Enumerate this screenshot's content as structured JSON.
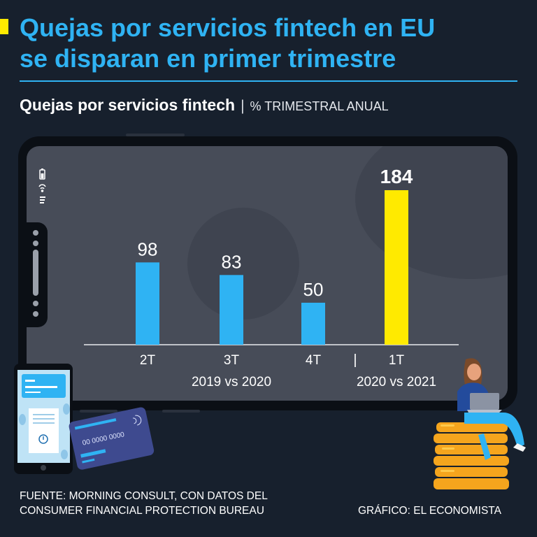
{
  "headline": {
    "line1": "Quejas por servicios fintech en EU",
    "line2": "se disparan en primer trimestre"
  },
  "subtitle": {
    "main": "Quejas por servicios fintech",
    "separator": "|",
    "unit": "% TRIMESTRAL ANUAL"
  },
  "colors": {
    "background": "#17202d",
    "accent_blue": "#2fb3f3",
    "accent_yellow": "#ffea00"
  },
  "chart_data": {
    "type": "bar",
    "title": "Quejas por servicios fintech",
    "ylabel": "% TRIMESTRAL ANUAL",
    "categories": [
      "2T",
      "3T",
      "4T",
      "1T"
    ],
    "values": [
      98,
      83,
      50,
      184
    ],
    "highlight_index": 3,
    "ylim": [
      0,
      184
    ],
    "groups": [
      {
        "label": "2019 vs 2020",
        "categories": [
          "2T",
          "3T",
          "4T"
        ]
      },
      {
        "label": "2020 vs 2021",
        "categories": [
          "1T"
        ]
      }
    ],
    "group_separator": "|"
  },
  "illustrations": {
    "card_number": "00 0000 0000"
  },
  "footer": {
    "source_line1": "FUENTE: MORNING CONSULT, CON DATOS DEL",
    "source_line2": "CONSUMER FINANCIAL PROTECTION BUREAU",
    "credit": "GRÁFICO: EL ECONOMISTA"
  }
}
